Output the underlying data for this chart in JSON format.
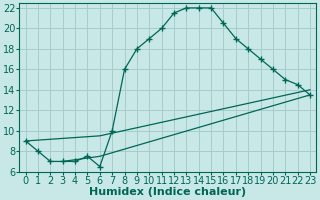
{
  "xlabel": "Humidex (Indice chaleur)",
  "ylabel": "",
  "xlim": [
    -0.5,
    23.5
  ],
  "ylim": [
    6,
    22.5
  ],
  "background_color": "#c8e8e8",
  "grid_color": "#a8cccc",
  "line_color": "#006655",
  "xticks": [
    0,
    1,
    2,
    3,
    4,
    5,
    6,
    7,
    8,
    9,
    10,
    11,
    12,
    13,
    14,
    15,
    16,
    17,
    18,
    19,
    20,
    21,
    22,
    23
  ],
  "yticks": [
    6,
    8,
    10,
    12,
    14,
    16,
    18,
    20,
    22
  ],
  "lines": [
    {
      "x": [
        0,
        1,
        2,
        3,
        4,
        5,
        6,
        7,
        8,
        9,
        10,
        11,
        12,
        13,
        14,
        15,
        16,
        17,
        18,
        19,
        20,
        21,
        22,
        23
      ],
      "y": [
        9,
        8,
        7,
        7,
        7,
        7.5,
        6.5,
        10,
        16,
        18,
        19,
        20,
        21.5,
        22,
        22,
        22,
        20.5,
        19,
        18,
        17,
        16,
        15,
        14.5,
        13.5
      ]
    },
    {
      "x": [
        0,
        6,
        23
      ],
      "y": [
        9,
        9.5,
        14
      ]
    },
    {
      "x": [
        3,
        6,
        23
      ],
      "y": [
        7,
        7.5,
        13.5
      ]
    }
  ],
  "tick_fontsize": 7,
  "label_fontsize": 8
}
